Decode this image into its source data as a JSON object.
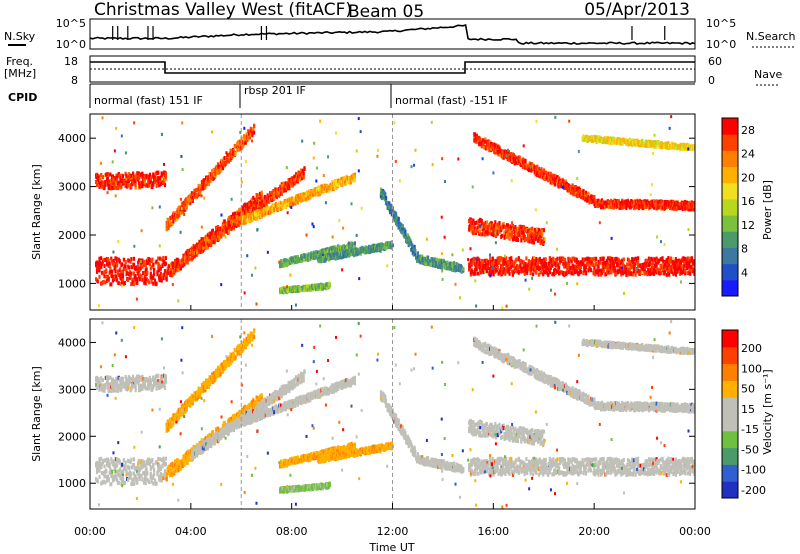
{
  "header": {
    "station": "Christmas Valley West (fitACF)",
    "beam": "Beam 05",
    "date": "05/Apr/2013"
  },
  "top_panels": {
    "nsky_label": "N.Sky",
    "nsearch_label": "N.Search",
    "noise_ticks": [
      "10^5",
      "10^0"
    ],
    "freq_label": "Freq.",
    "freq_unit": "[MHz]",
    "freq_ticks": [
      "18",
      "8"
    ],
    "nave_label": "Nave",
    "nave_ticks": [
      "60",
      "0"
    ],
    "cpid_label": "CPID",
    "cpid_modes": [
      {
        "label": "normal (fast) 151 IF",
        "start": 0,
        "end": 6
      },
      {
        "label": "rbsp 201 IF",
        "start": 6,
        "end": 12
      },
      {
        "label": "normal (fast) -151 IF",
        "start": 12,
        "end": 24
      }
    ]
  },
  "chart_data": [
    {
      "type": "heatmap",
      "panel": "power",
      "xlabel": "Time UT",
      "ylabel": "Slant Range [km]",
      "xlim": [
        0,
        24
      ],
      "ylim": [
        450,
        4500
      ],
      "yticks": [
        "1000",
        "2000",
        "3000",
        "4000"
      ],
      "xticks": [
        "00:00",
        "04:00",
        "08:00",
        "12:00",
        "16:00",
        "20:00",
        "00:00"
      ],
      "colorbar": {
        "label": "Power [dB]",
        "ticks": [
          "4",
          "8",
          "12",
          "16",
          "20",
          "24",
          "28"
        ],
        "colors": [
          "#1a1aff",
          "#2050c8",
          "#3c78a0",
          "#4a9a6a",
          "#7cc040",
          "#b8d820",
          "#f0e020",
          "#ffb000",
          "#ff8000",
          "#ff4000",
          "#ff0000"
        ]
      }
    },
    {
      "type": "heatmap",
      "panel": "velocity",
      "xlabel": "Time UT",
      "ylabel": "Slant Range [km]",
      "xlim": [
        0,
        24
      ],
      "ylim": [
        450,
        4500
      ],
      "yticks": [
        "1000",
        "2000",
        "3000",
        "4000"
      ],
      "xticks": [
        "00:00",
        "04:00",
        "08:00",
        "12:00",
        "16:00",
        "20:00",
        "00:00"
      ],
      "colorbar": {
        "label": "Velocity [m s⁻¹]",
        "ticks": [
          "200",
          "100",
          "50",
          "15",
          "-15",
          "-50",
          "-100",
          "-200"
        ],
        "colors": [
          "#2030c0",
          "#3060d0",
          "#4a9a6a",
          "#70c040",
          "#c0c0b8",
          "#c0c0b8",
          "#ffb000",
          "#ff8000",
          "#ff4000",
          "#ff0000"
        ]
      }
    }
  ],
  "colors": {
    "ground_scatter": "#c0c0b8"
  }
}
